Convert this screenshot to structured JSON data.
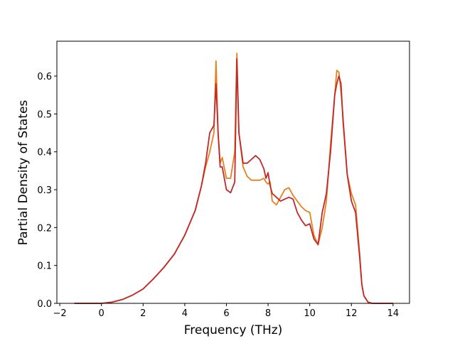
{
  "chart_data": {
    "type": "line",
    "x_label": "Frequency (THz)",
    "y_label": "Partial Density of States",
    "x": [
      -1.3,
      0,
      0.5,
      1,
      1.5,
      2,
      2.5,
      3,
      3.5,
      4,
      4.5,
      4.8,
      5.0,
      5.2,
      5.4,
      5.5,
      5.6,
      5.7,
      5.8,
      6.0,
      6.2,
      6.4,
      6.5,
      6.6,
      6.8,
      7.0,
      7.2,
      7.4,
      7.6,
      7.8,
      7.9,
      8.0,
      8.1,
      8.2,
      8.4,
      8.6,
      8.8,
      9.0,
      9.2,
      9.4,
      9.6,
      9.8,
      10.0,
      10.2,
      10.4,
      10.6,
      10.8,
      11.0,
      11.2,
      11.3,
      11.4,
      11.5,
      11.6,
      11.8,
      12.0,
      12.2,
      12.4,
      12.5,
      12.6,
      12.8,
      13.0,
      14.0
    ],
    "series": [
      {
        "color": "#e8801e",
        "values": [
          0,
          0,
          0.003,
          0.01,
          0.022,
          0.038,
          0.065,
          0.095,
          0.13,
          0.18,
          0.245,
          0.31,
          0.36,
          0.4,
          0.45,
          0.64,
          0.45,
          0.37,
          0.385,
          0.33,
          0.33,
          0.4,
          0.66,
          0.45,
          0.36,
          0.335,
          0.325,
          0.325,
          0.325,
          0.33,
          0.32,
          0.315,
          0.32,
          0.27,
          0.26,
          0.28,
          0.3,
          0.305,
          0.285,
          0.27,
          0.255,
          0.245,
          0.24,
          0.18,
          0.155,
          0.2,
          0.27,
          0.42,
          0.55,
          0.615,
          0.61,
          0.56,
          0.49,
          0.34,
          0.29,
          0.26,
          0.13,
          0.05,
          0.02,
          0.003,
          0,
          0
        ]
      },
      {
        "color": "#c0282a",
        "values": [
          0,
          0,
          0.003,
          0.01,
          0.022,
          0.038,
          0.065,
          0.095,
          0.13,
          0.18,
          0.245,
          0.31,
          0.37,
          0.45,
          0.47,
          0.58,
          0.45,
          0.36,
          0.36,
          0.3,
          0.292,
          0.32,
          0.645,
          0.45,
          0.37,
          0.37,
          0.38,
          0.39,
          0.38,
          0.355,
          0.33,
          0.345,
          0.31,
          0.29,
          0.28,
          0.27,
          0.275,
          0.28,
          0.275,
          0.24,
          0.22,
          0.205,
          0.21,
          0.17,
          0.155,
          0.24,
          0.29,
          0.4,
          0.55,
          0.58,
          0.6,
          0.58,
          0.48,
          0.34,
          0.27,
          0.24,
          0.12,
          0.05,
          0.02,
          0.003,
          0,
          0
        ]
      }
    ],
    "xlim": [
      -2.14,
      14.79
    ],
    "ylim": [
      0,
      0.692
    ],
    "xticks": [
      {
        "value": -2,
        "label": "−2"
      },
      0,
      2,
      4,
      6,
      8,
      10,
      12,
      14
    ],
    "yticks": [
      {
        "value": 0,
        "label": "0.0"
      },
      0.1,
      0.2,
      0.3,
      0.4,
      0.5,
      0.6
    ]
  }
}
